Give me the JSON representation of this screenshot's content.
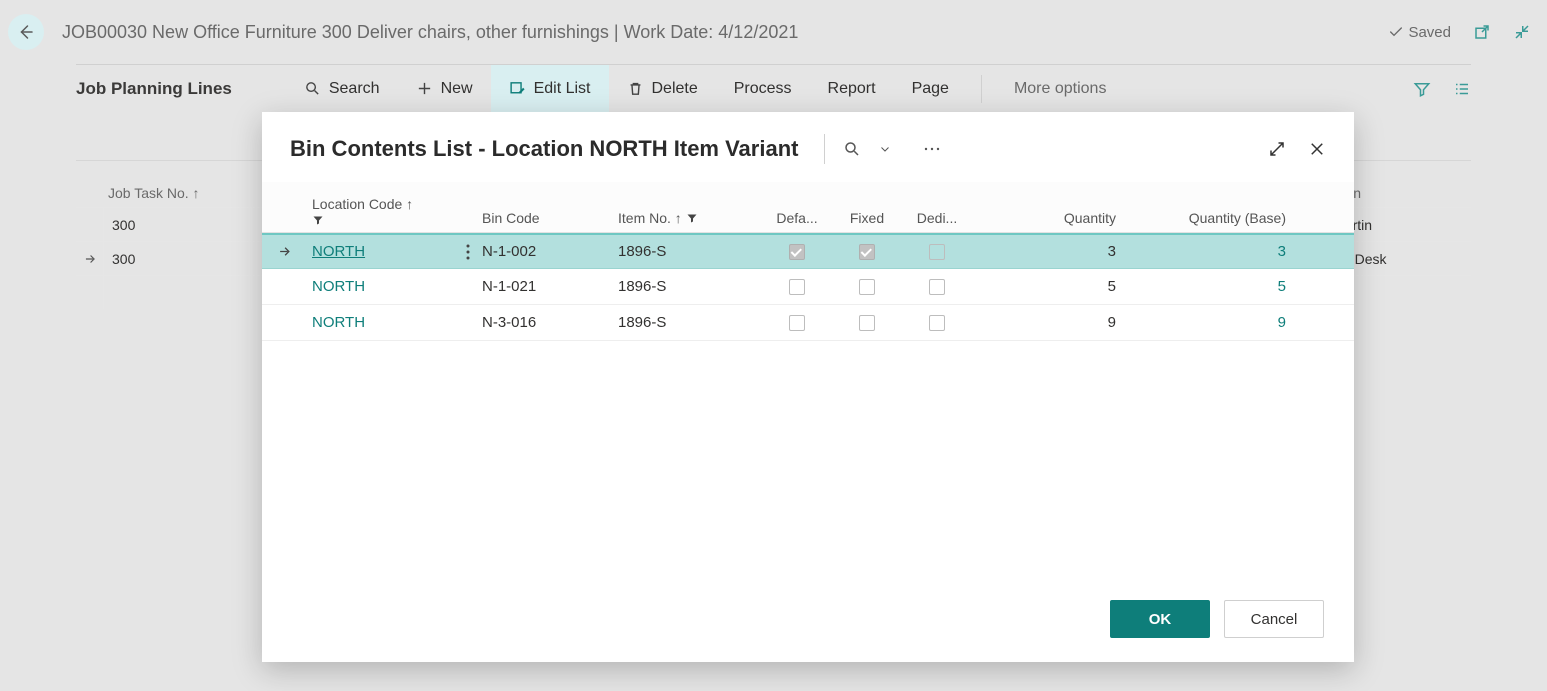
{
  "header": {
    "breadcrumb": "JOB00030 New Office Furniture 300 Deliver chairs, other furnishings | Work Date: 4/12/2021",
    "saved_label": "Saved"
  },
  "toolbar": {
    "title": "Job Planning Lines",
    "search": "Search",
    "new": "New",
    "edit_list": "Edit List",
    "delete": "Delete",
    "process": "Process",
    "report": "Report",
    "page": "Page",
    "more": "More options"
  },
  "bg_grid": {
    "col_job_task": "Job Task No. ↑",
    "col_description": "Description",
    "rows": [
      {
        "task": "300",
        "desc": "Linda Martin",
        "selected": false
      },
      {
        "task": "300",
        "desc": "ATHENS Desk",
        "selected": true
      }
    ]
  },
  "modal": {
    "title": "Bin Contents List - Location NORTH Item Variant",
    "columns": {
      "location_code": "Location Code ↑",
      "bin_code": "Bin Code",
      "item_no": "Item No. ↑",
      "default": "Defa...",
      "fixed": "Fixed",
      "dedicated": "Dedi...",
      "quantity": "Quantity",
      "quantity_base": "Quantity (Base)"
    },
    "rows": [
      {
        "location": "NORTH",
        "bin": "N-1-002",
        "item": "1896-S",
        "default": true,
        "fixed": true,
        "dedicated": false,
        "qty": "3",
        "qty_base": "3",
        "selected": true
      },
      {
        "location": "NORTH",
        "bin": "N-1-021",
        "item": "1896-S",
        "default": false,
        "fixed": false,
        "dedicated": false,
        "qty": "5",
        "qty_base": "5",
        "selected": false
      },
      {
        "location": "NORTH",
        "bin": "N-3-016",
        "item": "1896-S",
        "default": false,
        "fixed": false,
        "dedicated": false,
        "qty": "9",
        "qty_base": "9",
        "selected": false
      }
    ],
    "ok": "OK",
    "cancel": "Cancel"
  },
  "colors": {
    "teal": "#0e7e7a",
    "teal_light": "#b3e0de",
    "bg": "#e5e5e5"
  }
}
